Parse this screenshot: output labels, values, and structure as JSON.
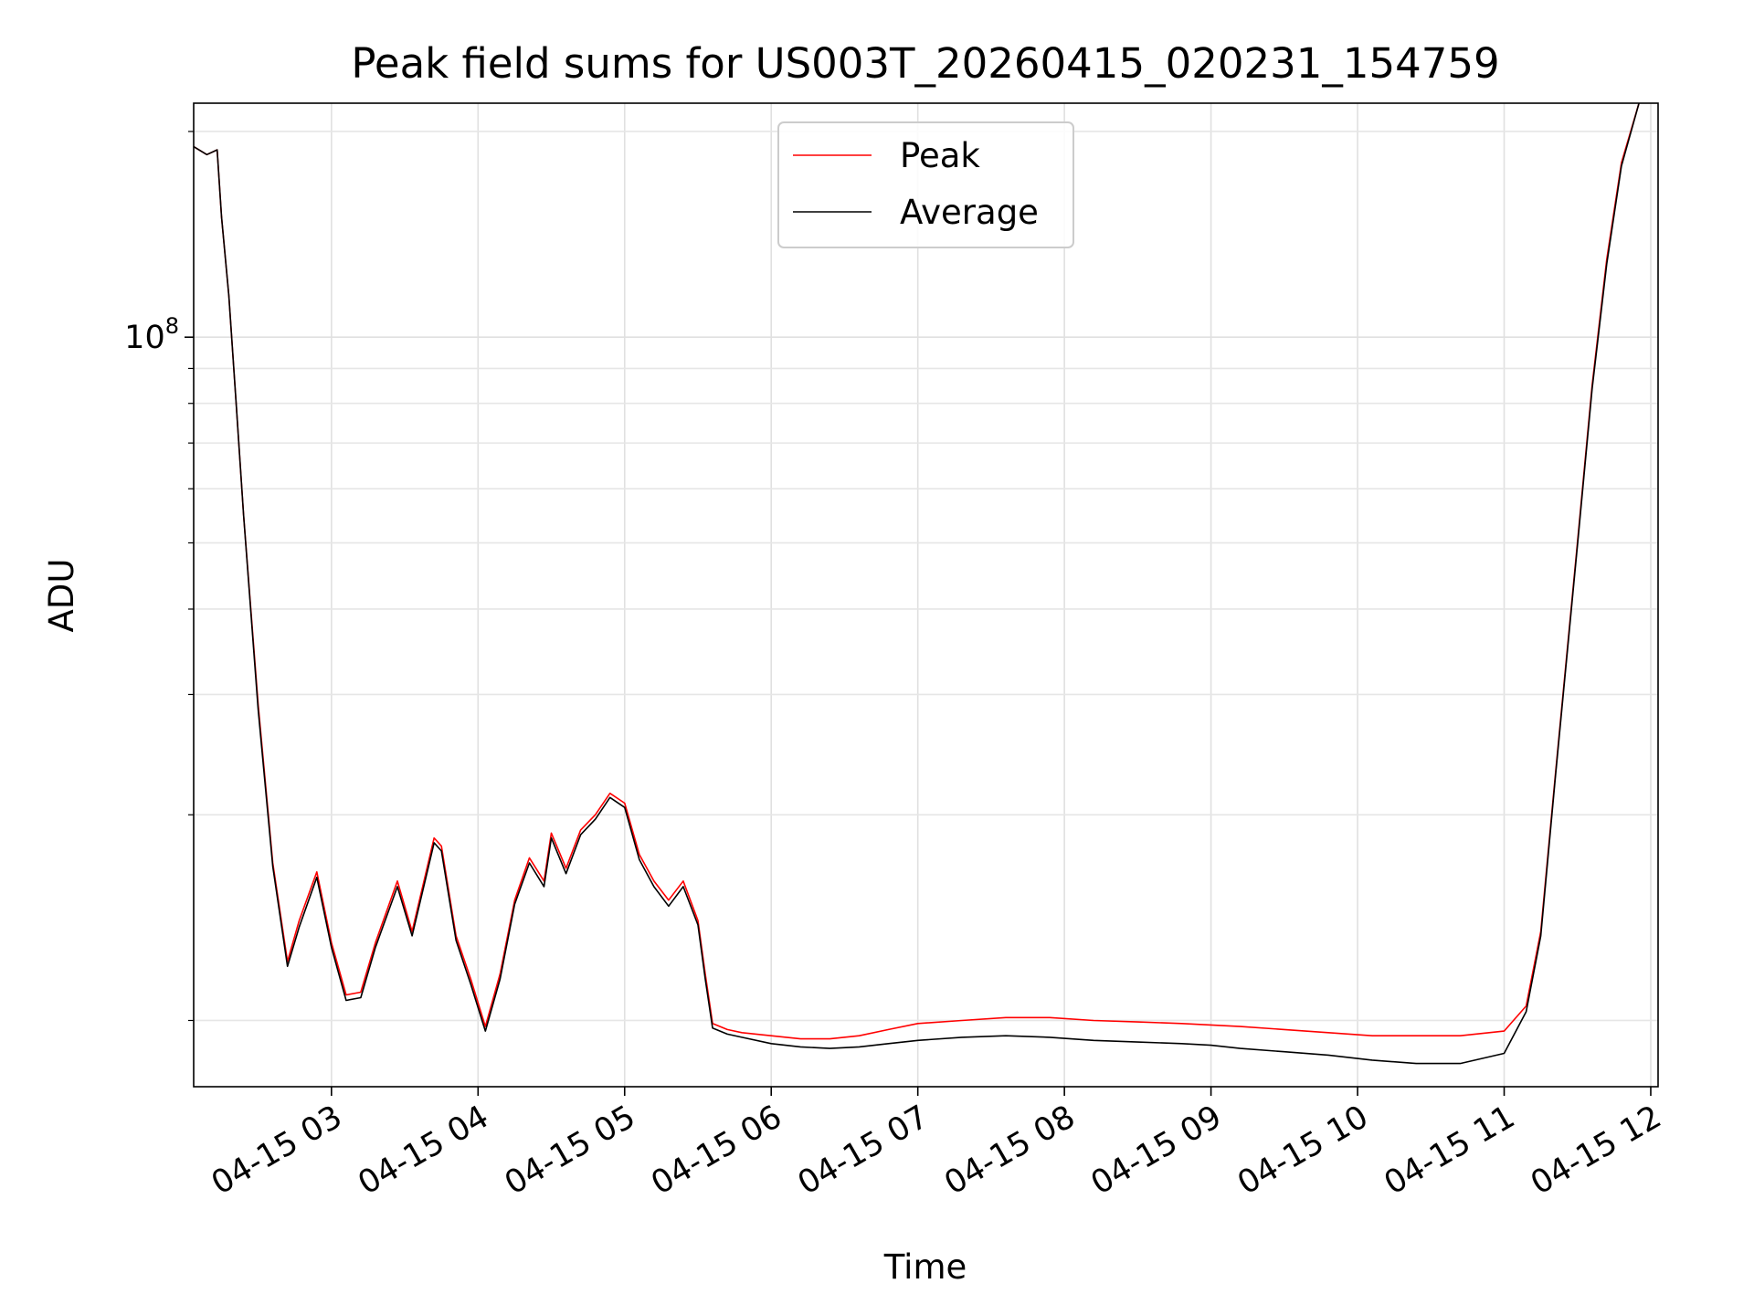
{
  "chart_data": {
    "type": "line",
    "title": "Peak field sums for US003T_20260415_020231_154759",
    "xlabel": "Time",
    "ylabel": "ADU",
    "yscale": "log",
    "ylim": [
      8000000,
      220000000
    ],
    "xlim": [
      2.06,
      12.05
    ],
    "grid": true,
    "legend_position": "top-center",
    "x_ticks": [
      {
        "value": 3,
        "label": "04-15 03"
      },
      {
        "value": 4,
        "label": "04-15 04"
      },
      {
        "value": 5,
        "label": "04-15 05"
      },
      {
        "value": 6,
        "label": "04-15 06"
      },
      {
        "value": 7,
        "label": "04-15 07"
      },
      {
        "value": 8,
        "label": "04-15 08"
      },
      {
        "value": 9,
        "label": "04-15 09"
      },
      {
        "value": 10,
        "label": "04-15 10"
      },
      {
        "value": 11,
        "label": "04-15 11"
      },
      {
        "value": 12,
        "label": "04-15 12"
      }
    ],
    "y_major_ticks": [
      {
        "value": 100000000,
        "base": "10",
        "exponent": "8"
      }
    ],
    "y_minor_ticks": [
      10000000,
      20000000,
      30000000,
      40000000,
      50000000,
      60000000,
      70000000,
      80000000,
      90000000,
      200000000
    ],
    "series": [
      {
        "name": "Peak",
        "color": "#ff0000",
        "x": [
          2.06,
          2.15,
          2.22,
          2.25,
          2.3,
          2.35,
          2.4,
          2.5,
          2.6,
          2.7,
          2.78,
          2.9,
          3.0,
          3.1,
          3.2,
          3.3,
          3.45,
          3.55,
          3.7,
          3.75,
          3.85,
          3.95,
          4.05,
          4.15,
          4.25,
          4.35,
          4.45,
          4.5,
          4.6,
          4.7,
          4.8,
          4.9,
          5.0,
          5.1,
          5.2,
          5.3,
          5.4,
          5.5,
          5.55,
          5.6,
          5.7,
          5.8,
          6.0,
          6.2,
          6.4,
          6.6,
          6.8,
          7.0,
          7.3,
          7.6,
          7.9,
          8.2,
          8.5,
          8.8,
          9.0,
          9.2,
          9.5,
          9.8,
          10.1,
          10.4,
          10.7,
          11.0,
          11.15,
          11.25,
          11.35,
          11.5,
          11.6,
          11.7,
          11.8,
          11.92
        ],
        "y": [
          190000000,
          185000000,
          188000000,
          150000000,
          115000000,
          80000000,
          55000000,
          29000000,
          17000000,
          12200000,
          14000000,
          16500000,
          13000000,
          10900000,
          11000000,
          13000000,
          16000000,
          13500000,
          18500000,
          18000000,
          13300000,
          11500000,
          9800000,
          11700000,
          15000000,
          17300000,
          16000000,
          18800000,
          16700000,
          19000000,
          20000000,
          21500000,
          20800000,
          17500000,
          16000000,
          15000000,
          16000000,
          14000000,
          11700000,
          9900000,
          9700000,
          9600000,
          9500000,
          9400000,
          9400000,
          9500000,
          9700000,
          9900000,
          10000000,
          10100000,
          10100000,
          10000000,
          9950000,
          9900000,
          9850000,
          9800000,
          9700000,
          9600000,
          9500000,
          9500000,
          9500000,
          9650000,
          10500000,
          13500000,
          23000000,
          50000000,
          85000000,
          130000000,
          180000000,
          220000000
        ]
      },
      {
        "name": "Average",
        "color": "#000000",
        "x": [
          2.06,
          2.15,
          2.22,
          2.25,
          2.3,
          2.35,
          2.4,
          2.5,
          2.6,
          2.7,
          2.78,
          2.9,
          3.0,
          3.1,
          3.2,
          3.3,
          3.45,
          3.55,
          3.7,
          3.75,
          3.85,
          3.95,
          4.05,
          4.15,
          4.25,
          4.35,
          4.45,
          4.5,
          4.6,
          4.7,
          4.8,
          4.9,
          5.0,
          5.1,
          5.2,
          5.3,
          5.4,
          5.5,
          5.55,
          5.6,
          5.7,
          5.8,
          6.0,
          6.2,
          6.4,
          6.6,
          6.8,
          7.0,
          7.3,
          7.6,
          7.9,
          8.2,
          8.5,
          8.8,
          9.0,
          9.2,
          9.5,
          9.8,
          10.1,
          10.4,
          10.7,
          11.0,
          11.15,
          11.25,
          11.35,
          11.5,
          11.6,
          11.7,
          11.8,
          11.92
        ],
        "y": [
          190000000,
          185000000,
          188000000,
          150000000,
          115000000,
          80000000,
          55000000,
          28500000,
          16800000,
          12000000,
          13700000,
          16200000,
          12800000,
          10700000,
          10800000,
          12800000,
          15700000,
          13300000,
          18200000,
          17700000,
          13100000,
          11300000,
          9650000,
          11500000,
          14800000,
          17000000,
          15700000,
          18500000,
          16400000,
          18700000,
          19700000,
          21200000,
          20500000,
          17200000,
          15700000,
          14700000,
          15700000,
          13800000,
          11500000,
          9750000,
          9550000,
          9450000,
          9250000,
          9150000,
          9100000,
          9150000,
          9250000,
          9350000,
          9450000,
          9500000,
          9450000,
          9350000,
          9300000,
          9250000,
          9200000,
          9100000,
          9000000,
          8900000,
          8750000,
          8650000,
          8650000,
          8950000,
          10300000,
          13300000,
          22800000,
          49500000,
          84000000,
          128000000,
          178000000,
          220000000
        ]
      }
    ]
  }
}
